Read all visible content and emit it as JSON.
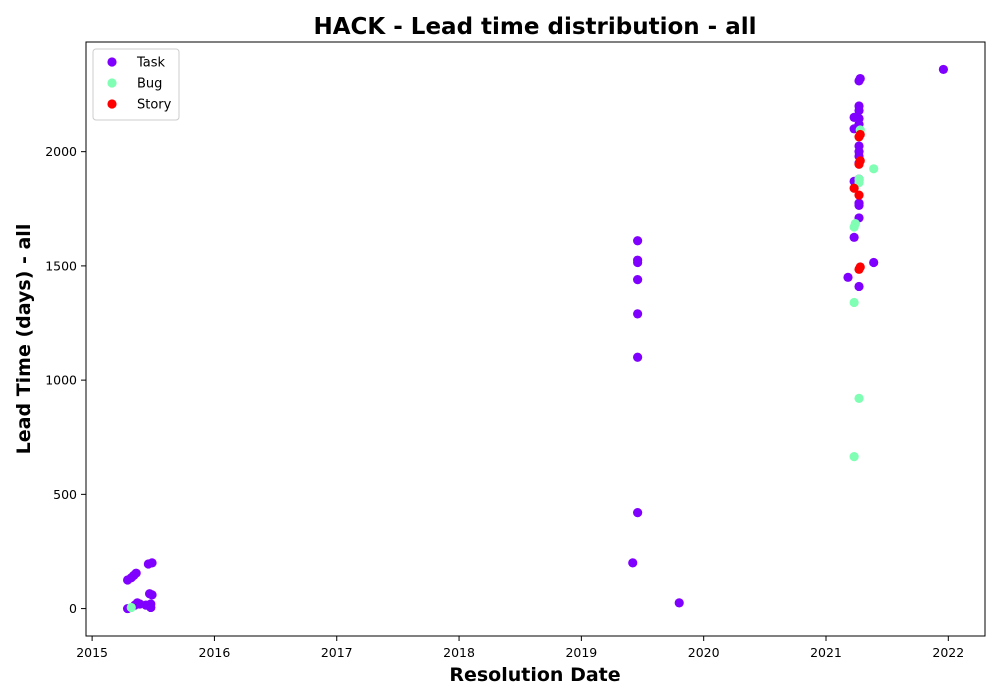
{
  "chart_data": {
    "type": "scatter",
    "title": "HACK - Lead time distribution - all",
    "xlabel": "Resolution Date",
    "ylabel": "Lead Time (days) - all",
    "xlim": [
      2014.95,
      2022.3
    ],
    "ylim": [
      -120,
      2480
    ],
    "x_ticks": [
      {
        "value": 2015,
        "label": "2015"
      },
      {
        "value": 2016,
        "label": "2016"
      },
      {
        "value": 2017,
        "label": "2017"
      },
      {
        "value": 2018,
        "label": "2018"
      },
      {
        "value": 2019,
        "label": "2019"
      },
      {
        "value": 2020,
        "label": "2020"
      },
      {
        "value": 2021,
        "label": "2021"
      },
      {
        "value": 2022,
        "label": "2022"
      }
    ],
    "y_ticks": [
      {
        "value": 0,
        "label": "0"
      },
      {
        "value": 500,
        "label": "500"
      },
      {
        "value": 1000,
        "label": "1000"
      },
      {
        "value": 1500,
        "label": "1500"
      },
      {
        "value": 2000,
        "label": "2000"
      }
    ],
    "grid": false,
    "legend": "top-left",
    "series": [
      {
        "name": "Task",
        "color": "#8000ff",
        "points": [
          [
            2015.29,
            0
          ],
          [
            2015.29,
            125
          ],
          [
            2015.32,
            135
          ],
          [
            2015.34,
            145
          ],
          [
            2015.36,
            155
          ],
          [
            2015.37,
            25
          ],
          [
            2015.35,
            15
          ],
          [
            2015.39,
            20
          ],
          [
            2015.44,
            15
          ],
          [
            2015.46,
            195
          ],
          [
            2015.47,
            65
          ],
          [
            2015.48,
            20
          ],
          [
            2015.48,
            5
          ],
          [
            2015.49,
            200
          ],
          [
            2015.49,
            60
          ],
          [
            2019.42,
            200
          ],
          [
            2019.46,
            420
          ],
          [
            2019.46,
            1100
          ],
          [
            2019.46,
            1290
          ],
          [
            2019.46,
            1440
          ],
          [
            2019.46,
            1515
          ],
          [
            2019.46,
            1525
          ],
          [
            2019.46,
            1610
          ],
          [
            2019.8,
            25
          ],
          [
            2021.18,
            1450
          ],
          [
            2021.23,
            1625
          ],
          [
            2021.23,
            1870
          ],
          [
            2021.23,
            2100
          ],
          [
            2021.23,
            2150
          ],
          [
            2021.27,
            1410
          ],
          [
            2021.27,
            1710
          ],
          [
            2021.27,
            1765
          ],
          [
            2021.27,
            1775
          ],
          [
            2021.27,
            1880
          ],
          [
            2021.27,
            1950
          ],
          [
            2021.27,
            1980
          ],
          [
            2021.27,
            2000
          ],
          [
            2021.27,
            2025
          ],
          [
            2021.27,
            2120
          ],
          [
            2021.27,
            2145
          ],
          [
            2021.27,
            2180
          ],
          [
            2021.27,
            2200
          ],
          [
            2021.27,
            2310
          ],
          [
            2021.28,
            2320
          ],
          [
            2021.39,
            1515
          ],
          [
            2021.96,
            2360
          ]
        ]
      },
      {
        "name": "Bug",
        "color": "#80ffb4",
        "points": [
          [
            2015.32,
            5
          ],
          [
            2021.23,
            665
          ],
          [
            2021.23,
            1340
          ],
          [
            2021.23,
            1670
          ],
          [
            2021.24,
            1685
          ],
          [
            2021.27,
            920
          ],
          [
            2021.27,
            1865
          ],
          [
            2021.27,
            1880
          ],
          [
            2021.28,
            2095
          ],
          [
            2021.39,
            1925
          ]
        ]
      },
      {
        "name": "Story",
        "color": "#ff0000",
        "points": [
          [
            2021.23,
            1840
          ],
          [
            2021.27,
            1485
          ],
          [
            2021.28,
            1495
          ],
          [
            2021.27,
            1810
          ],
          [
            2021.27,
            1945
          ],
          [
            2021.28,
            1960
          ],
          [
            2021.27,
            2065
          ],
          [
            2021.28,
            2075
          ]
        ]
      }
    ]
  }
}
